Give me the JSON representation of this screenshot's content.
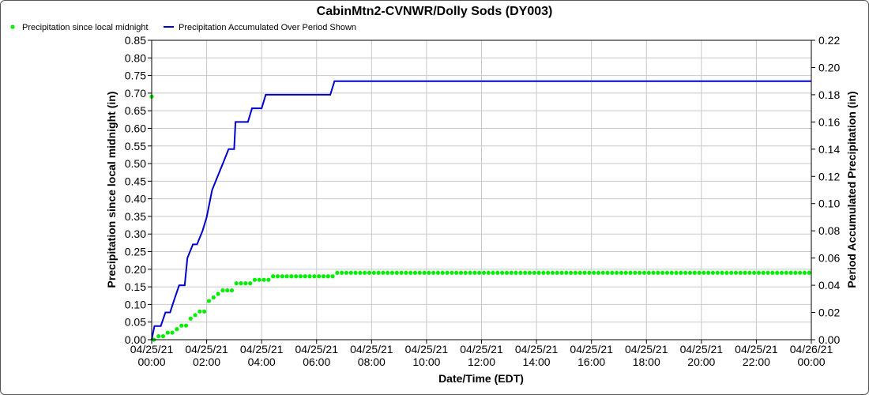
{
  "chart_data": {
    "type": "line",
    "title": "CabinMtn2-CVNWR/Dolly Sods (DY003)",
    "xlabel": "Date/Time (EDT)",
    "ylabel_left": "Precipitation since local midnight (in)",
    "ylabel_right": "Period Accumulated Precipitation (in)",
    "ylim_left": [
      0,
      0.85
    ],
    "ylim_right": [
      0,
      0.22
    ],
    "yticks_left": [
      "0.00",
      "0.05",
      "0.10",
      "0.15",
      "0.20",
      "0.25",
      "0.30",
      "0.35",
      "0.40",
      "0.45",
      "0.50",
      "0.55",
      "0.60",
      "0.65",
      "0.70",
      "0.75",
      "0.80",
      "0.85"
    ],
    "yticks_right": [
      "0.00",
      "0.02",
      "0.04",
      "0.06",
      "0.08",
      "0.10",
      "0.12",
      "0.14",
      "0.16",
      "0.18",
      "0.20",
      "0.22"
    ],
    "xlim_hours": [
      0,
      24
    ],
    "xticks": [
      {
        "hour": 0,
        "date": "04/25/21",
        "time": "00:00"
      },
      {
        "hour": 2,
        "date": "04/25/21",
        "time": "02:00"
      },
      {
        "hour": 4,
        "date": "04/25/21",
        "time": "04:00"
      },
      {
        "hour": 6,
        "date": "04/25/21",
        "time": "06:00"
      },
      {
        "hour": 8,
        "date": "04/25/21",
        "time": "08:00"
      },
      {
        "hour": 10,
        "date": "04/25/21",
        "time": "10:00"
      },
      {
        "hour": 12,
        "date": "04/25/21",
        "time": "12:00"
      },
      {
        "hour": 14,
        "date": "04/25/21",
        "time": "14:00"
      },
      {
        "hour": 16,
        "date": "04/25/21",
        "time": "16:00"
      },
      {
        "hour": 18,
        "date": "04/25/21",
        "time": "18:00"
      },
      {
        "hour": 20,
        "date": "04/25/21",
        "time": "20:00"
      },
      {
        "hour": 22,
        "date": "04/25/21",
        "time": "22:00"
      },
      {
        "hour": 24,
        "date": "04/26/21",
        "time": "00:00"
      }
    ],
    "legend_position": "top-left",
    "grid": true,
    "series": [
      {
        "name": "Precipitation since local midnight",
        "axis": "left",
        "style": "points",
        "color": "#00ee00",
        "first_point": {
          "hour": 0,
          "value": 0.69
        },
        "steps": [
          {
            "hour": 0.083,
            "value": 0.0
          },
          {
            "hour": 0.167,
            "value": 0.01
          },
          {
            "hour": 0.5,
            "value": 0.02
          },
          {
            "hour": 0.75,
            "value": 0.03
          },
          {
            "hour": 1.0,
            "value": 0.04
          },
          {
            "hour": 1.25,
            "value": 0.06
          },
          {
            "hour": 1.42,
            "value": 0.07
          },
          {
            "hour": 1.75,
            "value": 0.08
          },
          {
            "hour": 1.92,
            "value": 0.09
          },
          {
            "hour": 2.0,
            "value": 0.11
          },
          {
            "hour": 2.17,
            "value": 0.12
          },
          {
            "hour": 2.33,
            "value": 0.13
          },
          {
            "hour": 2.5,
            "value": 0.14
          },
          {
            "hour": 2.67,
            "value": 0.14
          },
          {
            "hour": 3.0,
            "value": 0.16
          },
          {
            "hour": 3.67,
            "value": 0.17
          },
          {
            "hour": 4.33,
            "value": 0.18
          },
          {
            "hour": 6.67,
            "value": 0.19
          }
        ],
        "end_hour": 24,
        "interval_hours": 0.1667
      },
      {
        "name": "Precipitation Accumulated Over Period Shown",
        "axis": "right",
        "style": "line",
        "color": "#0000cc",
        "x": [
          0,
          0.1,
          0.3,
          0.33,
          0.5,
          0.67,
          0.83,
          1.0,
          1.2,
          1.3,
          1.5,
          1.65,
          1.85,
          2.0,
          2.2,
          2.4,
          2.6,
          2.8,
          3.0,
          3.05,
          3.5,
          3.65,
          4.0,
          4.15,
          6.5,
          6.65,
          24
        ],
        "y": [
          0,
          0.01,
          0.01,
          0.01,
          0.02,
          0.02,
          0.03,
          0.04,
          0.04,
          0.06,
          0.07,
          0.07,
          0.08,
          0.09,
          0.11,
          0.12,
          0.13,
          0.14,
          0.14,
          0.16,
          0.16,
          0.17,
          0.17,
          0.18,
          0.18,
          0.19,
          0.19
        ]
      }
    ]
  }
}
